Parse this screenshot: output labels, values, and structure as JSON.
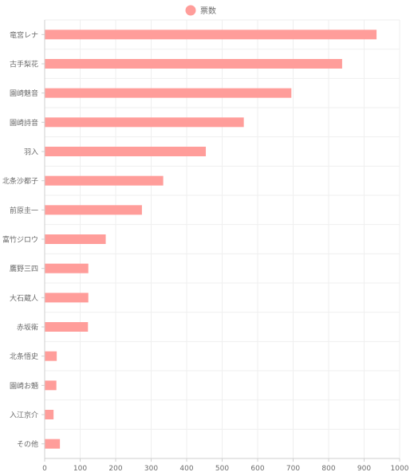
{
  "chart_data": {
    "type": "bar",
    "orientation": "horizontal",
    "categories": [
      "竜宮レナ",
      "古手梨花",
      "園崎魅音",
      "園崎詩音",
      "羽入",
      "北条沙都子",
      "前原圭一",
      "富竹ジロウ",
      "鷹野三四",
      "大石蔵人",
      "赤坂衛",
      "北条悟史",
      "園崎お魎",
      "入江京介",
      "その他"
    ],
    "series": [
      {
        "name": "票数",
        "values": [
          935,
          838,
          695,
          561,
          454,
          334,
          274,
          172,
          123,
          123,
          122,
          34,
          33,
          25,
          43
        ]
      }
    ],
    "xlim": [
      0,
      1000
    ],
    "x_ticks": [
      0,
      100,
      200,
      300,
      400,
      500,
      600,
      700,
      800,
      900,
      1000
    ],
    "grid": true,
    "legend_position": "top-center",
    "colors": {
      "bar": "#ff9d9a",
      "grid": "#efefef",
      "axis": "#cfcfcf",
      "text": "#6b6b6b"
    }
  }
}
